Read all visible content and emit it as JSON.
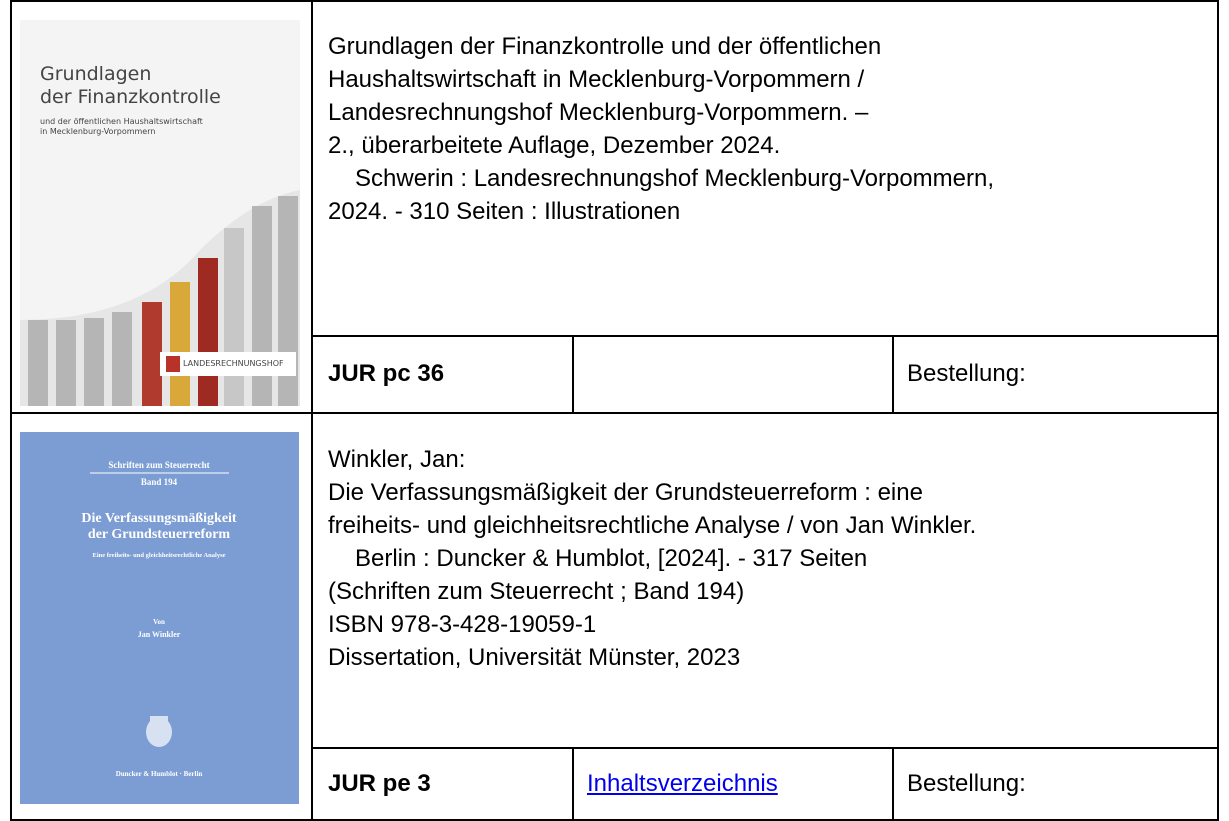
{
  "rows": [
    {
      "cover": {
        "title_lines": [
          "Grundlagen",
          "der Finanzkontrolle"
        ],
        "subtitle_lines": [
          "und der öffentlichen Haushaltswirtschaft",
          "in Mecklenburg-Vorpommern"
        ],
        "logo": "LANDESRECHNUNGSHOF"
      },
      "description": [
        "Grundlagen der Finanzkontrolle und der öffentlichen",
        "Haushaltswirtschaft in Mecklenburg-Vorpommern /",
        "Landesrechnungshof Mecklenburg-Vorpommern. –",
        "2., überarbeitete Auflage, Dezember 2024.",
        "Schwerin : Landesrechnungshof Mecklenburg-Vorpommern,",
        "2024. - 310 Seiten : Illustrationen"
      ],
      "signature": "JUR pc 36",
      "order": "Bestellung:"
    },
    {
      "cover": {
        "series": "Schriften zum Steuerrecht",
        "volume": "Band 194",
        "title_lines": [
          "Die Verfassungsmäßigkeit",
          "der Grundsteuerreform"
        ],
        "subtitle": "Eine freiheits- und gleichheitsrechtliche Analyse",
        "by": "Von",
        "author": "Jan Winkler",
        "publisher": "Duncker & Humblot · Berlin"
      },
      "description": [
        "Winkler, Jan:",
        "Die Verfassungsmäßigkeit der Grundsteuerreform : eine",
        "freiheits- und gleichheitsrechtliche Analyse / von Jan Winkler.",
        "Berlin : Duncker & Humblot, [2024]. - 317 Seiten",
        "(Schriften zum Steuerrecht ; Band 194)",
        "ISBN 978-3-428-19059-1",
        "Dissertation, Universität Münster, 2023"
      ],
      "signature": "JUR pe 3",
      "link": "Inhaltsverzeichnis",
      "order": "Bestellung:"
    }
  ]
}
